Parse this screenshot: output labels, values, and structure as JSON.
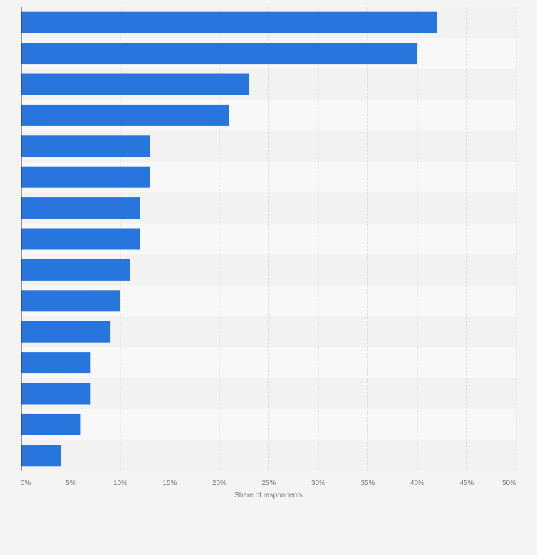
{
  "chart_data": {
    "type": "bar",
    "orientation": "horizontal",
    "title": "",
    "xlabel": "Share of respondents",
    "ylabel": "",
    "xlim": [
      0,
      50
    ],
    "x_ticks": [
      0,
      5,
      10,
      15,
      20,
      25,
      30,
      35,
      40,
      45,
      50
    ],
    "x_tick_labels": [
      "0%",
      "5%",
      "10%",
      "15%",
      "20%",
      "25%",
      "30%",
      "35%",
      "40%",
      "45%",
      "50%"
    ],
    "categories": [
      "",
      "",
      "",
      "",
      "",
      "",
      "",
      "",
      "",
      "",
      "",
      "",
      "",
      "",
      ""
    ],
    "values": [
      42,
      40,
      23,
      21,
      13,
      13,
      12,
      12,
      11,
      10,
      9,
      7,
      7,
      6,
      4
    ],
    "value_unit": "%",
    "grid": true,
    "legend": "none"
  },
  "colors": {
    "bar": "#2876dd",
    "background": "#f4f4f4",
    "band_light": "#f8f8f8",
    "band_dark": "#f2f2f2",
    "grid": "#dcdcdc",
    "axis": "#333333",
    "text": "#777777"
  }
}
